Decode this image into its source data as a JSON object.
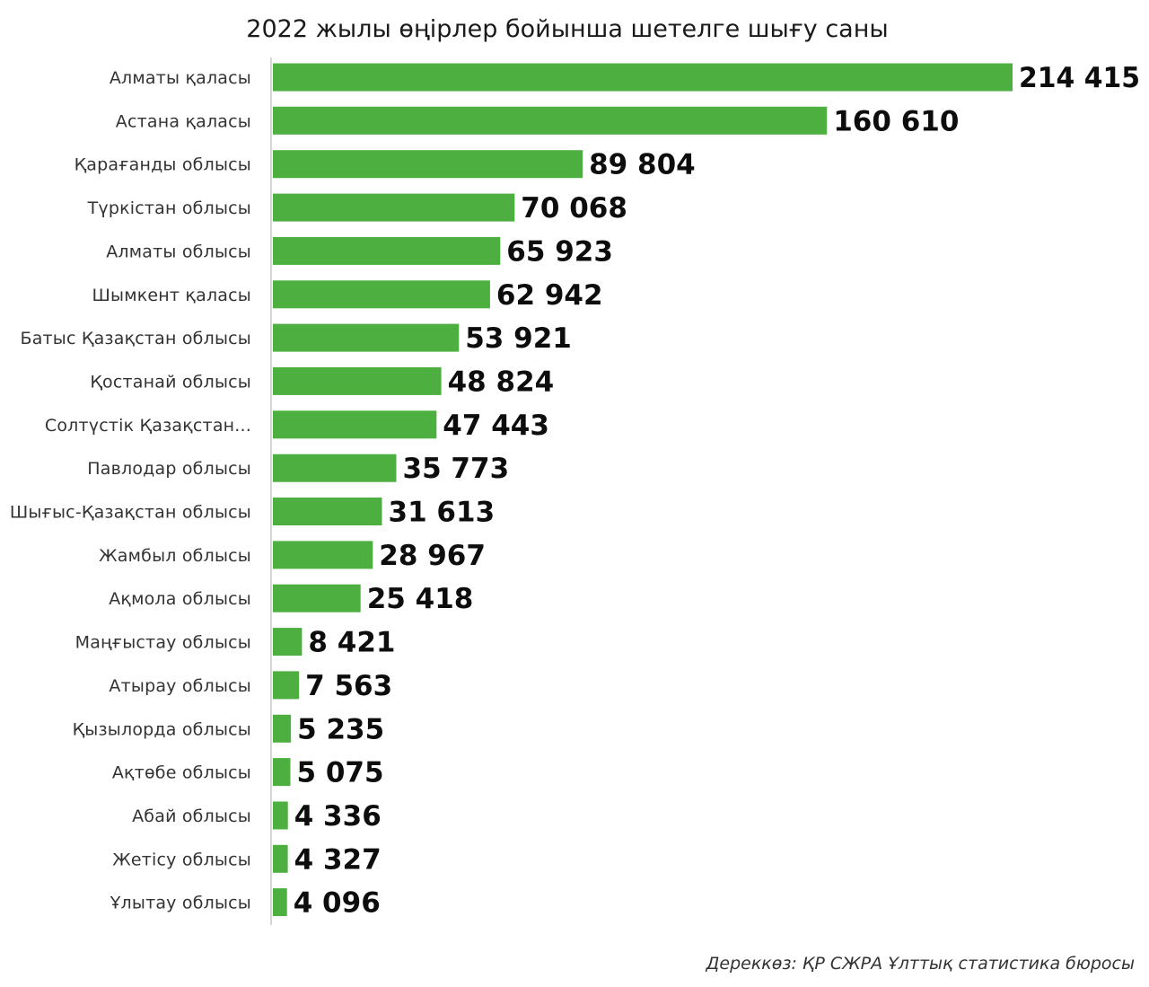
{
  "chart_data": {
    "type": "bar",
    "orientation": "horizontal",
    "title": "2022 жылы өңірлер бойынша шетелге шығу саны",
    "xlabel": "",
    "ylabel": "",
    "grid": false,
    "legend": "none",
    "bar_color": "#4caf3f",
    "source": "Дереккөз: ҚР СЖРА Ұлттық статистика бюросы",
    "xlim": [
      0,
      214415
    ],
    "categories": [
      "Алматы қаласы",
      "Астана  қаласы",
      "Қарағанды облысы",
      "Түркістан облысы",
      "Алматы облысы",
      "Шымкент қаласы",
      "Батыс Қазақстан облысы",
      "Қостанай облысы",
      "Солтүстік Қазақстан...",
      "Павлодар облысы",
      "Шығыс-Қазақстан облысы",
      "Жамбыл облысы",
      "Ақмола облысы",
      "Маңғыстау облысы",
      "Атырау облысы",
      "Қызылорда облысы",
      "Ақтөбе облысы",
      "Абай облысы",
      "Жетісу облысы",
      "Ұлытау облысы"
    ],
    "values": [
      214415,
      160610,
      89804,
      70068,
      65923,
      62942,
      53921,
      48824,
      47443,
      35773,
      31613,
      28967,
      25418,
      8421,
      7563,
      5235,
      5075,
      4336,
      4327,
      4096
    ],
    "data_labels": [
      "214 415",
      "160 610",
      "89 804",
      "70 068",
      "65 923",
      "62 942",
      "53 921",
      "48 824",
      "47 443",
      "35 773",
      "31 613",
      "28 967",
      "25 418",
      "8 421",
      "7 563",
      "5 235",
      "5 075",
      "4 336",
      "4 327",
      "4 096"
    ]
  }
}
